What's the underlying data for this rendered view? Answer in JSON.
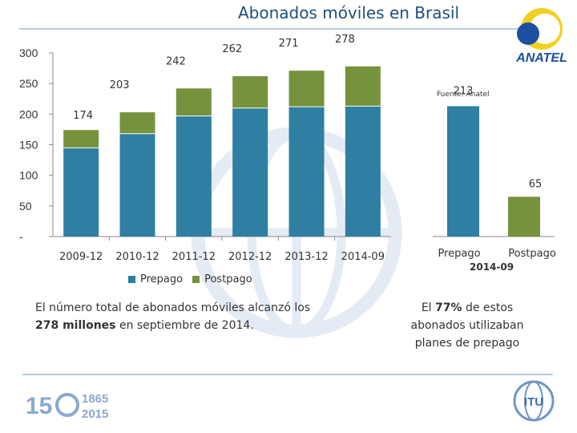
{
  "title": "Abonados móviles en Brasil",
  "source_note": "Fuente: Anatel",
  "brand_logo_text": "ANATEL",
  "colors": {
    "prepago": "#2e7fa1",
    "postpago": "#76923c",
    "title": "#1f4e79"
  },
  "chart_data": [
    {
      "type": "bar",
      "stacked": true,
      "categories": [
        "2009-12",
        "2010-12",
        "2011-12",
        "2012-12",
        "2013-12",
        "2014-09"
      ],
      "series": [
        {
          "name": "Prepago",
          "values": [
            145,
            168,
            197,
            210,
            212,
            213
          ]
        },
        {
          "name": "Postpago",
          "values": [
            29,
            35,
            45,
            52,
            59,
            65
          ]
        }
      ],
      "totals": [
        "174",
        "203",
        "242",
        "262",
        "271",
        "278"
      ],
      "yticks": [
        "-",
        "50",
        "100",
        "150",
        "200",
        "250",
        "300"
      ],
      "ylim": [
        0,
        300
      ],
      "legend": [
        "Prepago",
        "Postpago"
      ]
    },
    {
      "type": "bar",
      "categories": [
        "Prepago",
        "Postpago"
      ],
      "values": [
        213,
        65
      ],
      "labels": [
        "213",
        "65"
      ],
      "xlabel": "2014-09",
      "ylim": [
        0,
        300
      ]
    }
  ],
  "notes": {
    "left": "El número total de abonados móviles alcanzó los 278 millones en septiembre de 2014.",
    "right": "El 77% de estos abonados utilizaban planes de prepago"
  },
  "footer": {
    "logo_years_top": "1865",
    "logo_years_bottom": "2015",
    "logo_150": "15",
    "itu": "ITU"
  }
}
